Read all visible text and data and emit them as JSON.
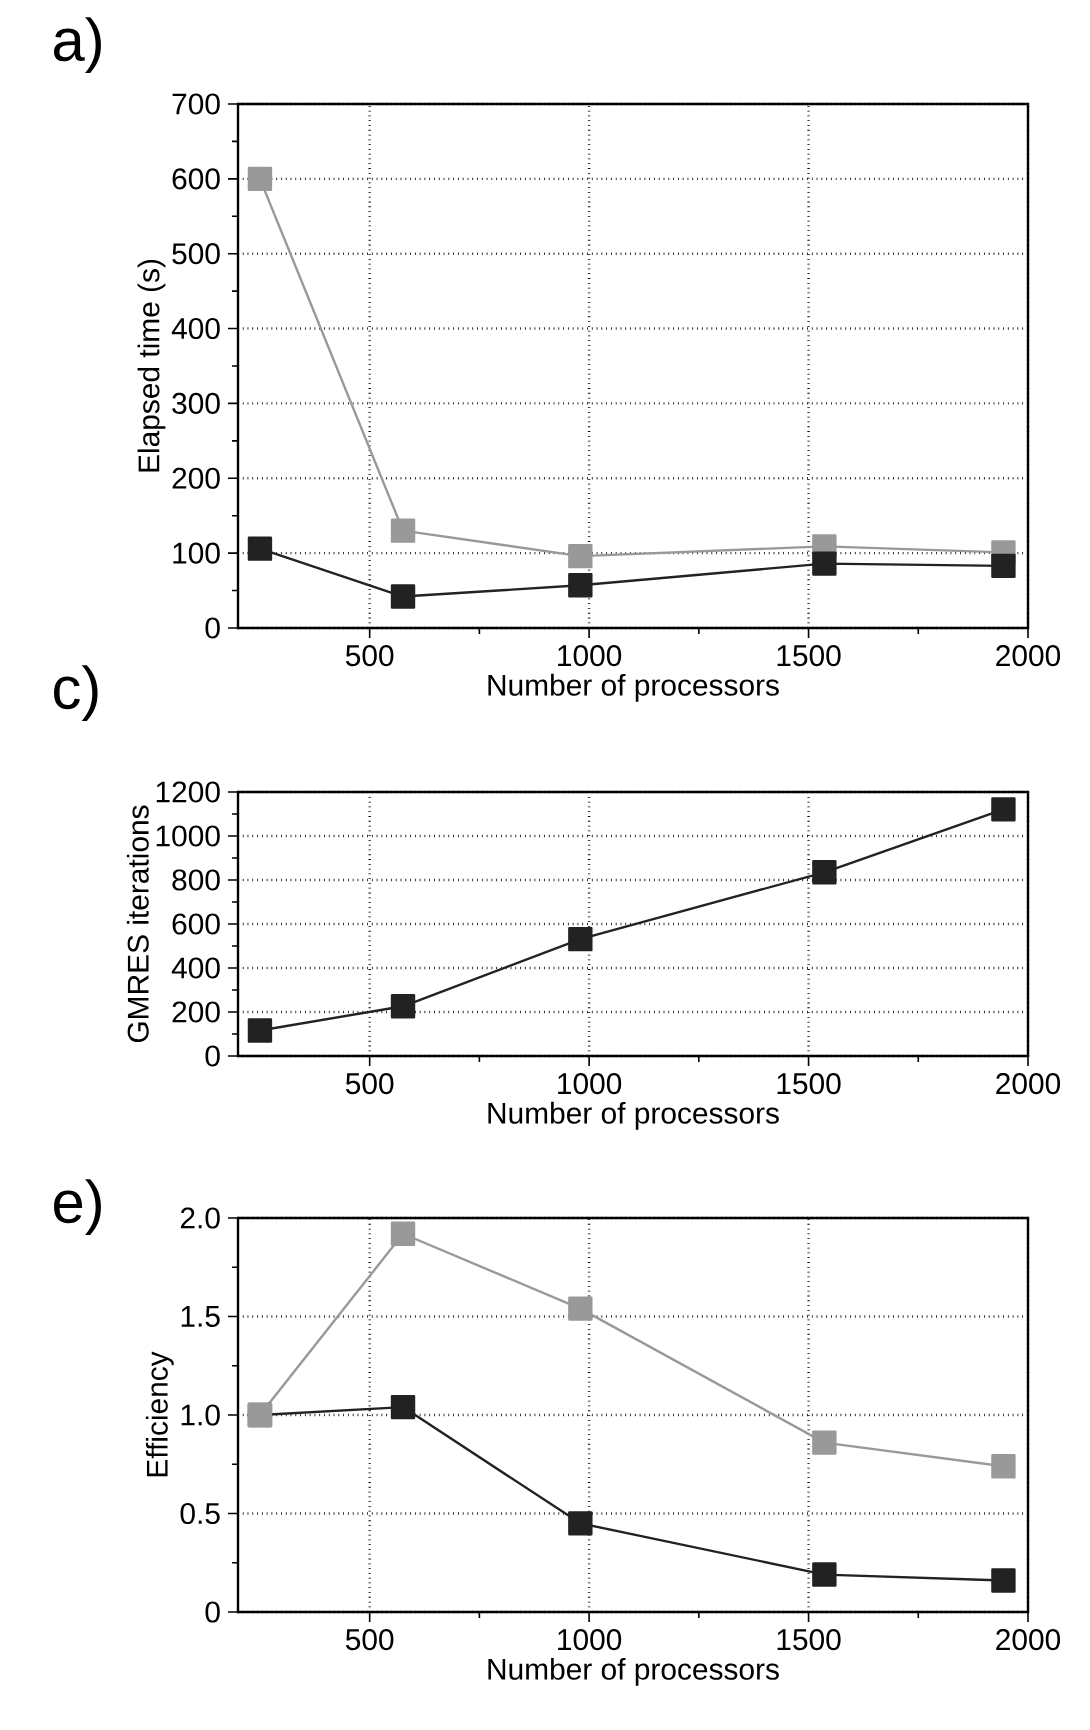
{
  "chart_data": [
    {
      "type": "line",
      "title": "a)",
      "xlabel": "Number of processors",
      "ylabel": "Elapsed time (s)",
      "x": [
        250,
        576,
        980,
        1536,
        1944
      ],
      "series": [
        {
          "color": "#999999",
          "values": [
            600,
            130,
            96,
            109,
            101
          ]
        },
        {
          "color": "#222222",
          "values": [
            106,
            42,
            57,
            86,
            83
          ]
        }
      ],
      "xlim": [
        200,
        2000
      ],
      "ylim": [
        0,
        700
      ],
      "xticks": [
        500,
        1000,
        1500,
        2000
      ],
      "yticks": [
        0,
        100,
        200,
        300,
        400,
        500,
        600,
        700
      ],
      "grid": true,
      "marker": "square",
      "line_style": "solid"
    },
    {
      "type": "line",
      "title": "c)",
      "xlabel": "Number of processors",
      "ylabel": "GMRES iterations",
      "x": [
        250,
        576,
        980,
        1536,
        1944
      ],
      "series": [
        {
          "color": "#222222",
          "values": [
            116,
            226,
            531,
            835,
            1121
          ]
        }
      ],
      "xlim": [
        200,
        2000
      ],
      "ylim": [
        0,
        1200
      ],
      "xticks": [
        500,
        1000,
        1500,
        2000
      ],
      "yticks": [
        0,
        200,
        400,
        600,
        800,
        1000,
        1200
      ],
      "grid": true,
      "marker": "square",
      "line_style": "solid"
    },
    {
      "type": "line",
      "title": "e)",
      "xlabel": "Number of processors",
      "ylabel": "Efficiency",
      "x": [
        250,
        576,
        980,
        1536,
        1944
      ],
      "series": [
        {
          "color": "#222222",
          "values": [
            1.0,
            1.04,
            0.45,
            0.19,
            0.16
          ]
        },
        {
          "color": "#999999",
          "values": [
            1.0,
            1.92,
            1.54,
            0.86,
            0.74
          ]
        }
      ],
      "xlim": [
        200,
        2000
      ],
      "ylim": [
        0,
        2.0
      ],
      "xticks": [
        500,
        1000,
        1500,
        2000
      ],
      "yticks": [
        0,
        {
          "value": 0.5,
          "label": "0.5"
        },
        {
          "value": 1.0,
          "label": "1.0"
        },
        {
          "value": 1.5,
          "label": "1.5"
        },
        {
          "value": 2.0,
          "label": "2.0"
        }
      ],
      "grid": true,
      "marker": "square",
      "line_style": "solid"
    }
  ]
}
